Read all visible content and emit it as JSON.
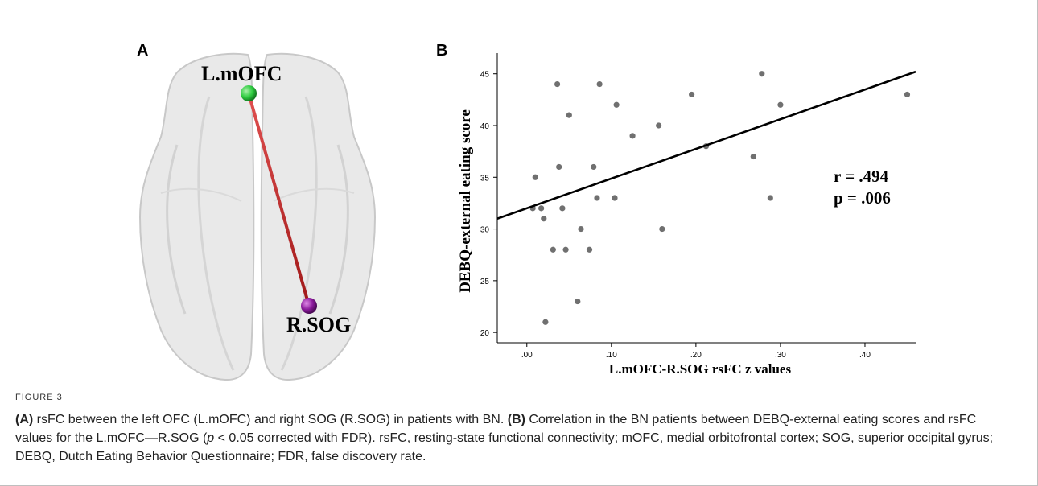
{
  "panels": {
    "a_label": "A",
    "b_label": "B"
  },
  "brain": {
    "node_top_label": "L.mOFC",
    "node_bottom_label": "R.SOG",
    "node_top_color": "#2ecc40",
    "node_bottom_color": "#8a1a9b",
    "edge_color": "#c62828"
  },
  "chart_data": {
    "type": "scatter",
    "xlabel": "L.mOFC-R.SOG rsFC z values",
    "ylabel": "DEBQ-external eating score",
    "xlim": [
      -0.035,
      0.46
    ],
    "ylim": [
      19,
      47
    ],
    "x_ticks": [
      0.0,
      0.1,
      0.2,
      0.3,
      0.4
    ],
    "x_tick_labels": [
      ".00",
      ".10",
      ".20",
      ".30",
      ".40"
    ],
    "y_ticks": [
      20,
      25,
      30,
      35,
      40,
      45
    ],
    "y_tick_labels": [
      "20",
      "25",
      "30",
      "35",
      "40",
      "45"
    ],
    "grid": false,
    "points": [
      {
        "x": 0.007,
        "y": 32
      },
      {
        "x": 0.01,
        "y": 35
      },
      {
        "x": 0.017,
        "y": 32
      },
      {
        "x": 0.02,
        "y": 31
      },
      {
        "x": 0.022,
        "y": 21
      },
      {
        "x": 0.031,
        "y": 28
      },
      {
        "x": 0.036,
        "y": 44
      },
      {
        "x": 0.038,
        "y": 36
      },
      {
        "x": 0.042,
        "y": 32
      },
      {
        "x": 0.046,
        "y": 28
      },
      {
        "x": 0.05,
        "y": 41
      },
      {
        "x": 0.06,
        "y": 23
      },
      {
        "x": 0.064,
        "y": 30
      },
      {
        "x": 0.074,
        "y": 28
      },
      {
        "x": 0.079,
        "y": 36
      },
      {
        "x": 0.083,
        "y": 33
      },
      {
        "x": 0.086,
        "y": 44
      },
      {
        "x": 0.104,
        "y": 33
      },
      {
        "x": 0.106,
        "y": 42
      },
      {
        "x": 0.125,
        "y": 39
      },
      {
        "x": 0.156,
        "y": 40
      },
      {
        "x": 0.16,
        "y": 30
      },
      {
        "x": 0.195,
        "y": 43
      },
      {
        "x": 0.212,
        "y": 38
      },
      {
        "x": 0.268,
        "y": 37
      },
      {
        "x": 0.278,
        "y": 45
      },
      {
        "x": 0.288,
        "y": 33
      },
      {
        "x": 0.3,
        "y": 42
      },
      {
        "x": 0.45,
        "y": 43
      }
    ],
    "fit_line": {
      "x": [
        -0.035,
        0.46
      ],
      "y": [
        31.0,
        45.2
      ]
    },
    "annotations": [
      "r = .494",
      "p = .006"
    ]
  },
  "figure": {
    "label": "FIGURE 3",
    "caption_a_tag": "(A)",
    "caption_a_text": " rsFC between the left OFC (L.mOFC) and right SOG (R.SOG) in patients with BN. ",
    "caption_b_tag": "(B)",
    "caption_b_text_1": " Correlation in the BN patients between DEBQ-external eating scores and rsFC values for the L.mOFC—R.SOG (",
    "caption_p": "p",
    "caption_b_text_2": " < 0.05 corrected with FDR). rsFC, resting-state functional connectivity; mOFC, medial orbitofrontal cortex; SOG, superior occipital gyrus; DEBQ, Dutch Eating Behavior Questionnaire; FDR, false discovery rate."
  }
}
